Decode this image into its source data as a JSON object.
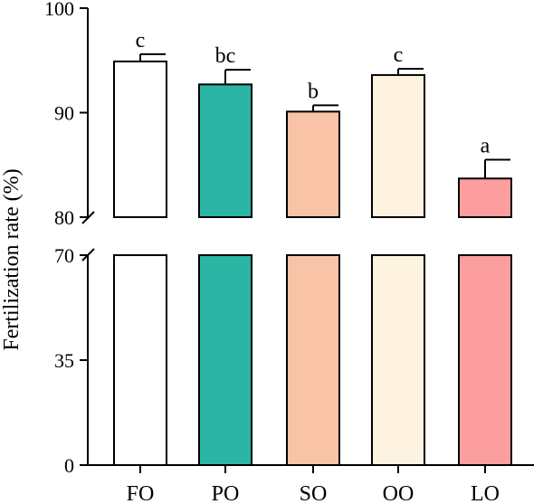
{
  "chart_data": {
    "type": "bar",
    "title": "",
    "xlabel": "",
    "ylabel": "Fertilization rate (%)",
    "categories": [
      "FO",
      "PO",
      "SO",
      "OO",
      "LO"
    ],
    "values": [
      94.9,
      92.7,
      90.1,
      93.6,
      83.7
    ],
    "errors": [
      0.7,
      1.4,
      0.6,
      0.6,
      1.8
    ],
    "significance": [
      "c",
      "bc",
      "b",
      "c",
      "a"
    ],
    "colors": [
      "#ffffff",
      "#2bb5a4",
      "#f8c3a6",
      "#fdf3e0",
      "#fb9e9d"
    ],
    "axis_break": [
      70,
      80
    ],
    "upper_segment": {
      "ylim": [
        80,
        100
      ],
      "ticks": [
        "80",
        "90",
        "100"
      ]
    },
    "lower_segment": {
      "ylim": [
        0,
        70
      ],
      "ticks": [
        "0",
        "35",
        "70"
      ]
    },
    "grid": false,
    "legend": "none"
  }
}
